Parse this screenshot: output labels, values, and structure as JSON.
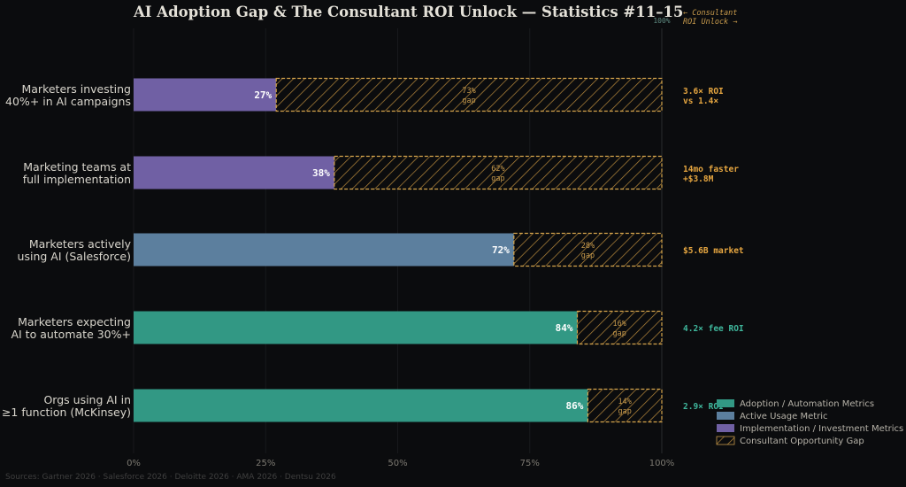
{
  "chart_data": {
    "type": "bar",
    "orientation": "horizontal",
    "stacked": true,
    "title": "AI Adoption Gap & The Consultant ROI Unlock — Statistics #11–15",
    "categories": [
      "Marketers investing\n40%+ in AI campaigns",
      "Marketing teams at\nfull implementation",
      "Marketers actively\nusing AI (Salesforce)",
      "Marketers expecting\nAI to automate 30%+",
      "Orgs using AI in\n≥1 function (McKinsey)"
    ],
    "values": [
      27,
      38,
      72,
      84,
      86
    ],
    "value_labels": [
      "27%",
      "38%",
      "72%",
      "84%",
      "86%"
    ],
    "gap_labels": [
      [
        "73%",
        "gap"
      ],
      [
        "62%",
        "gap"
      ],
      [
        "28%",
        "gap"
      ],
      [
        "16%",
        "gap"
      ],
      [
        "14%",
        "gap"
      ]
    ],
    "bar_series": [
      "Implementation / Investment Metrics",
      "Implementation / Investment Metrics",
      "Active Usage Metric",
      "Adoption / Automation Metrics",
      "Adoption / Automation Metrics"
    ],
    "roi_notes": [
      [
        "3.6× ROI",
        "vs 1.4×"
      ],
      [
        "14mo faster",
        "+$3.8M"
      ],
      [
        "$5.6B market"
      ],
      [
        "4.2× fee ROI"
      ],
      [
        "2.9× ROI"
      ]
    ],
    "roi_note_colors": [
      "#e6a640",
      "#e6a640",
      "#e6a640",
      "#3fb79c",
      "#3fb79c"
    ],
    "xlim": [
      0,
      100
    ],
    "xticks": [
      "0%",
      "25%",
      "50%",
      "75%",
      "100%"
    ],
    "top_tick": "100%",
    "corner_note": [
      "← Consultant",
      "ROI Unlock →"
    ],
    "grid": true,
    "legend_position": "bottom-right",
    "legend": [
      {
        "label": "Adoption / Automation Metrics",
        "color": "#329884",
        "hatched": false
      },
      {
        "label": "Active Usage Metric",
        "color": "#5c7f9e",
        "hatched": false
      },
      {
        "label": "Implementation / Investment Metrics",
        "color": "#7060a4",
        "hatched": false
      },
      {
        "label": "Consultant Opportunity Gap",
        "color": "#c79a4c",
        "hatched": true
      }
    ],
    "colors": {
      "Adoption / Automation Metrics": "#329884",
      "Active Usage Metric": "#5c7f9e",
      "Implementation / Investment Metrics": "#7060a4",
      "gap_stroke": "#d6a54c"
    },
    "source": "Sources: Gartner 2026 · Salesforce 2026 · Deloitte 2026 · AMA 2026 · Dentsu 2026"
  }
}
